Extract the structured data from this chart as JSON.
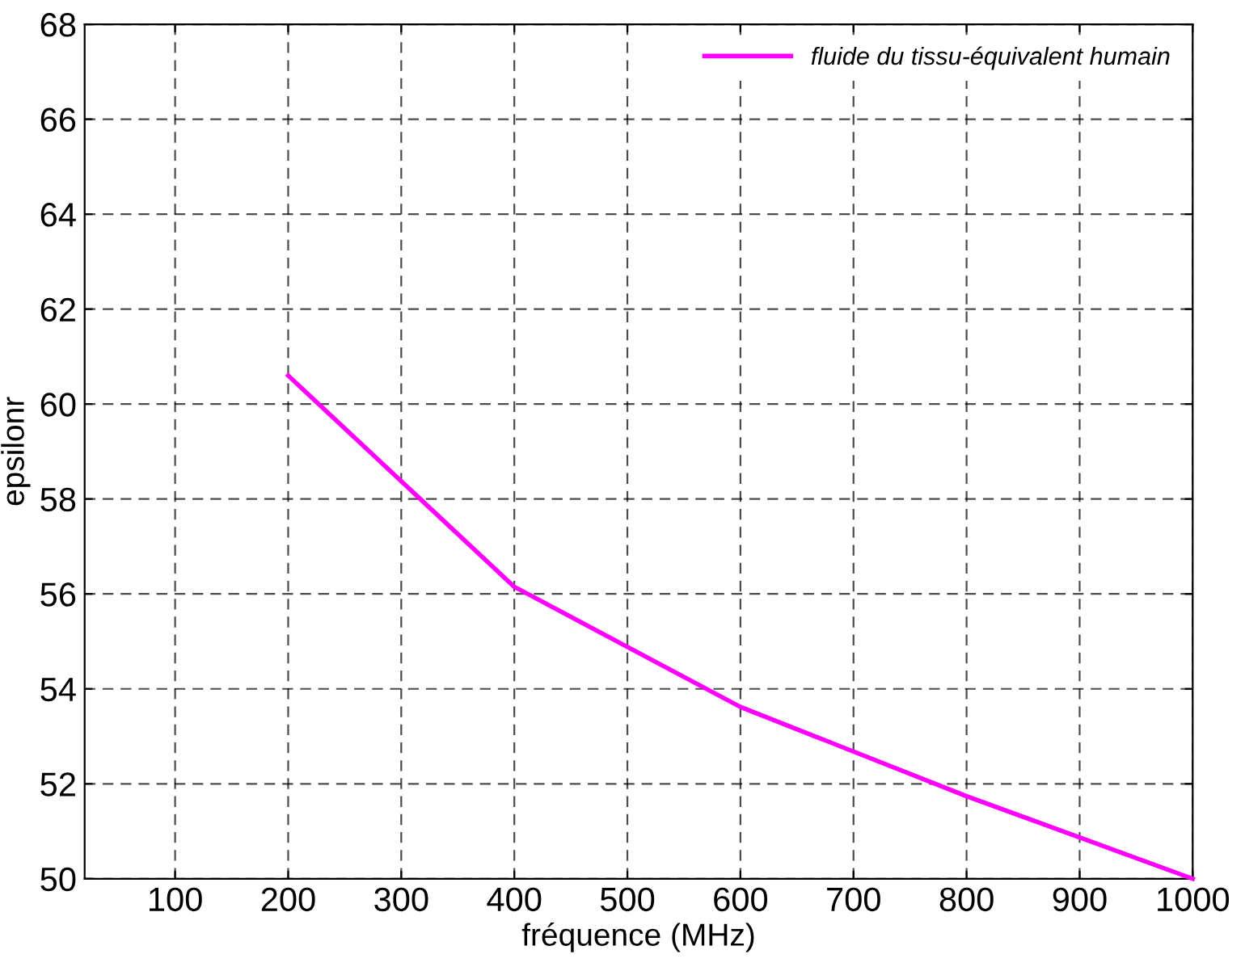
{
  "chart_data": {
    "type": "line",
    "xlabel": "fréquence (MHz)",
    "ylabel": "epsilonr",
    "x": [
      200,
      400,
      600,
      800,
      1000
    ],
    "series": [
      {
        "name": "fluide du tissu-équivalent humain",
        "color": "#ff00ff",
        "values": [
          60.6,
          56.15,
          53.62,
          51.74,
          50.0
        ]
      }
    ],
    "xlim": [
      20,
      1000
    ],
    "xticks": [
      100,
      200,
      300,
      400,
      500,
      600,
      700,
      800,
      900,
      1000
    ],
    "ylim": [
      50,
      68
    ],
    "yticks": [
      50,
      52,
      54,
      56,
      58,
      60,
      62,
      64,
      66,
      68
    ],
    "grid": true,
    "legend": "top right",
    "line_style": "solid",
    "marker": "none"
  }
}
